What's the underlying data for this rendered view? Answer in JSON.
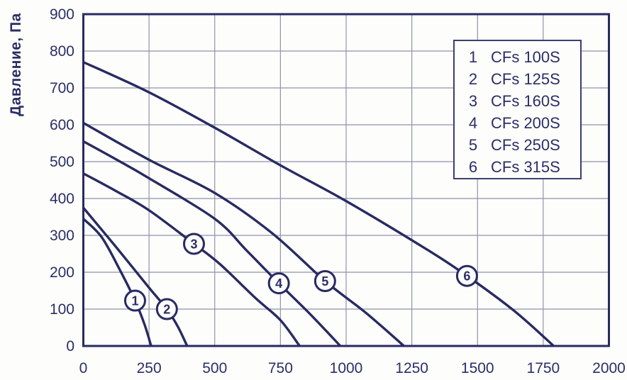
{
  "figure": {
    "background": "#fdfdfb",
    "curve_color": "#282a62",
    "grid_color": "#9093ac",
    "text_color": "#2b2e66",
    "legend_border_color": "#3c3f6e"
  },
  "chart_data": {
    "type": "line",
    "ylabel": "Давление, Па",
    "xlim": [
      0,
      2000
    ],
    "ylim": [
      0,
      900
    ],
    "x_ticks": [
      0,
      250,
      500,
      750,
      1000,
      1250,
      1500,
      1750,
      2000
    ],
    "y_ticks": [
      0,
      100,
      200,
      300,
      400,
      500,
      600,
      700,
      800,
      900
    ],
    "grid": true,
    "legend_position": "top-right",
    "series": [
      {
        "index": "1",
        "name": "CFs 100S",
        "marker": {
          "x": 197,
          "y": 123
        },
        "points": [
          [
            0,
            345
          ],
          [
            70,
            295
          ],
          [
            140,
            205
          ],
          [
            197,
            123
          ],
          [
            233,
            58
          ],
          [
            258,
            0
          ]
        ]
      },
      {
        "index": "2",
        "name": "CFs 125S",
        "marker": {
          "x": 318,
          "y": 100
        },
        "points": [
          [
            0,
            375
          ],
          [
            125,
            268
          ],
          [
            250,
            158
          ],
          [
            318,
            100
          ],
          [
            360,
            52
          ],
          [
            395,
            0
          ]
        ]
      },
      {
        "index": "3",
        "name": "CFs 160S",
        "marker": {
          "x": 421,
          "y": 277
        },
        "points": [
          [
            0,
            468
          ],
          [
            125,
            420
          ],
          [
            250,
            368
          ],
          [
            421,
            277
          ],
          [
            520,
            222
          ],
          [
            655,
            130
          ],
          [
            750,
            70
          ],
          [
            823,
            0
          ]
        ]
      },
      {
        "index": "4",
        "name": "CFs 200S",
        "marker": {
          "x": 744,
          "y": 170
        },
        "points": [
          [
            0,
            555
          ],
          [
            125,
            506
          ],
          [
            250,
            455
          ],
          [
            500,
            345
          ],
          [
            620,
            260
          ],
          [
            744,
            170
          ],
          [
            865,
            85
          ],
          [
            978,
            0
          ]
        ]
      },
      {
        "index": "5",
        "name": "CFs 250S",
        "marker": {
          "x": 920,
          "y": 176
        },
        "points": [
          [
            0,
            605
          ],
          [
            250,
            505
          ],
          [
            500,
            415
          ],
          [
            720,
            305
          ],
          [
            920,
            176
          ],
          [
            1075,
            90
          ],
          [
            1220,
            0
          ]
        ]
      },
      {
        "index": "6",
        "name": "CFs 315S",
        "marker": {
          "x": 1460,
          "y": 190
        },
        "points": [
          [
            0,
            770
          ],
          [
            250,
            688
          ],
          [
            500,
            592
          ],
          [
            750,
            490
          ],
          [
            1000,
            393
          ],
          [
            1300,
            265
          ],
          [
            1460,
            190
          ],
          [
            1640,
            95
          ],
          [
            1790,
            0
          ]
        ]
      }
    ]
  }
}
